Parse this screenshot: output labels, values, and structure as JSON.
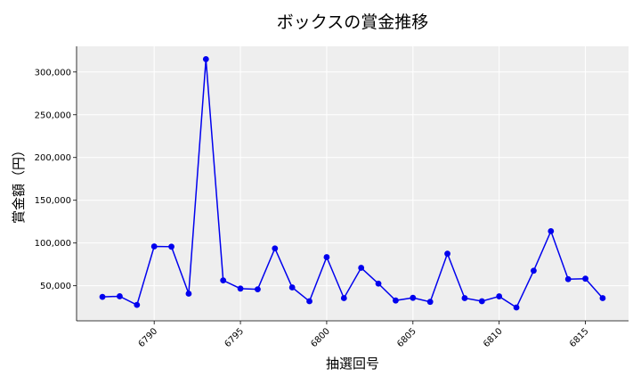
{
  "chart_data": {
    "type": "line",
    "title": "ボックスの賞金推移",
    "xlabel": "抽選回号",
    "ylabel": "賞金額（円）",
    "x": [
      6787,
      6788,
      6789,
      6790,
      6791,
      6792,
      6793,
      6794,
      6795,
      6796,
      6797,
      6798,
      6799,
      6800,
      6801,
      6802,
      6803,
      6804,
      6805,
      6806,
      6807,
      6808,
      6809,
      6810,
      6811,
      6812,
      6813,
      6814,
      6815,
      6816
    ],
    "series": [
      {
        "values": [
          37000,
          37700,
          27600,
          96000,
          95700,
          40800,
          315000,
          56300,
          46700,
          45900,
          93700,
          48100,
          31900,
          83500,
          35600,
          71000,
          52500,
          32800,
          35900,
          31200,
          87500,
          35600,
          31900,
          37600,
          24600,
          67600,
          113900,
          57700,
          58300,
          35600
        ],
        "color": "#0000ee",
        "marker": "circle"
      }
    ],
    "xlim": [
      6785.5,
      6817.5
    ],
    "ylim": [
      9000,
      330000
    ],
    "xticks": [
      {
        "value": 6790,
        "label": "6790"
      },
      {
        "value": 6795,
        "label": "6795"
      },
      {
        "value": 6800,
        "label": "6800"
      },
      {
        "value": 6805,
        "label": "6805"
      },
      {
        "value": 6810,
        "label": "6810"
      },
      {
        "value": 6815,
        "label": "6815"
      }
    ],
    "yticks": [
      {
        "value": 50000,
        "label": "50,000"
      },
      {
        "value": 100000,
        "label": "100,000"
      },
      {
        "value": 150000,
        "label": "150,000"
      },
      {
        "value": 200000,
        "label": "200,000"
      },
      {
        "value": 250000,
        "label": "250,000"
      },
      {
        "value": 300000,
        "label": "300,000"
      }
    ],
    "grid": true,
    "legend": "none",
    "colors": {
      "plot_background": "#eeeeee",
      "grid": "#ffffff",
      "line": "#0000ee"
    }
  }
}
